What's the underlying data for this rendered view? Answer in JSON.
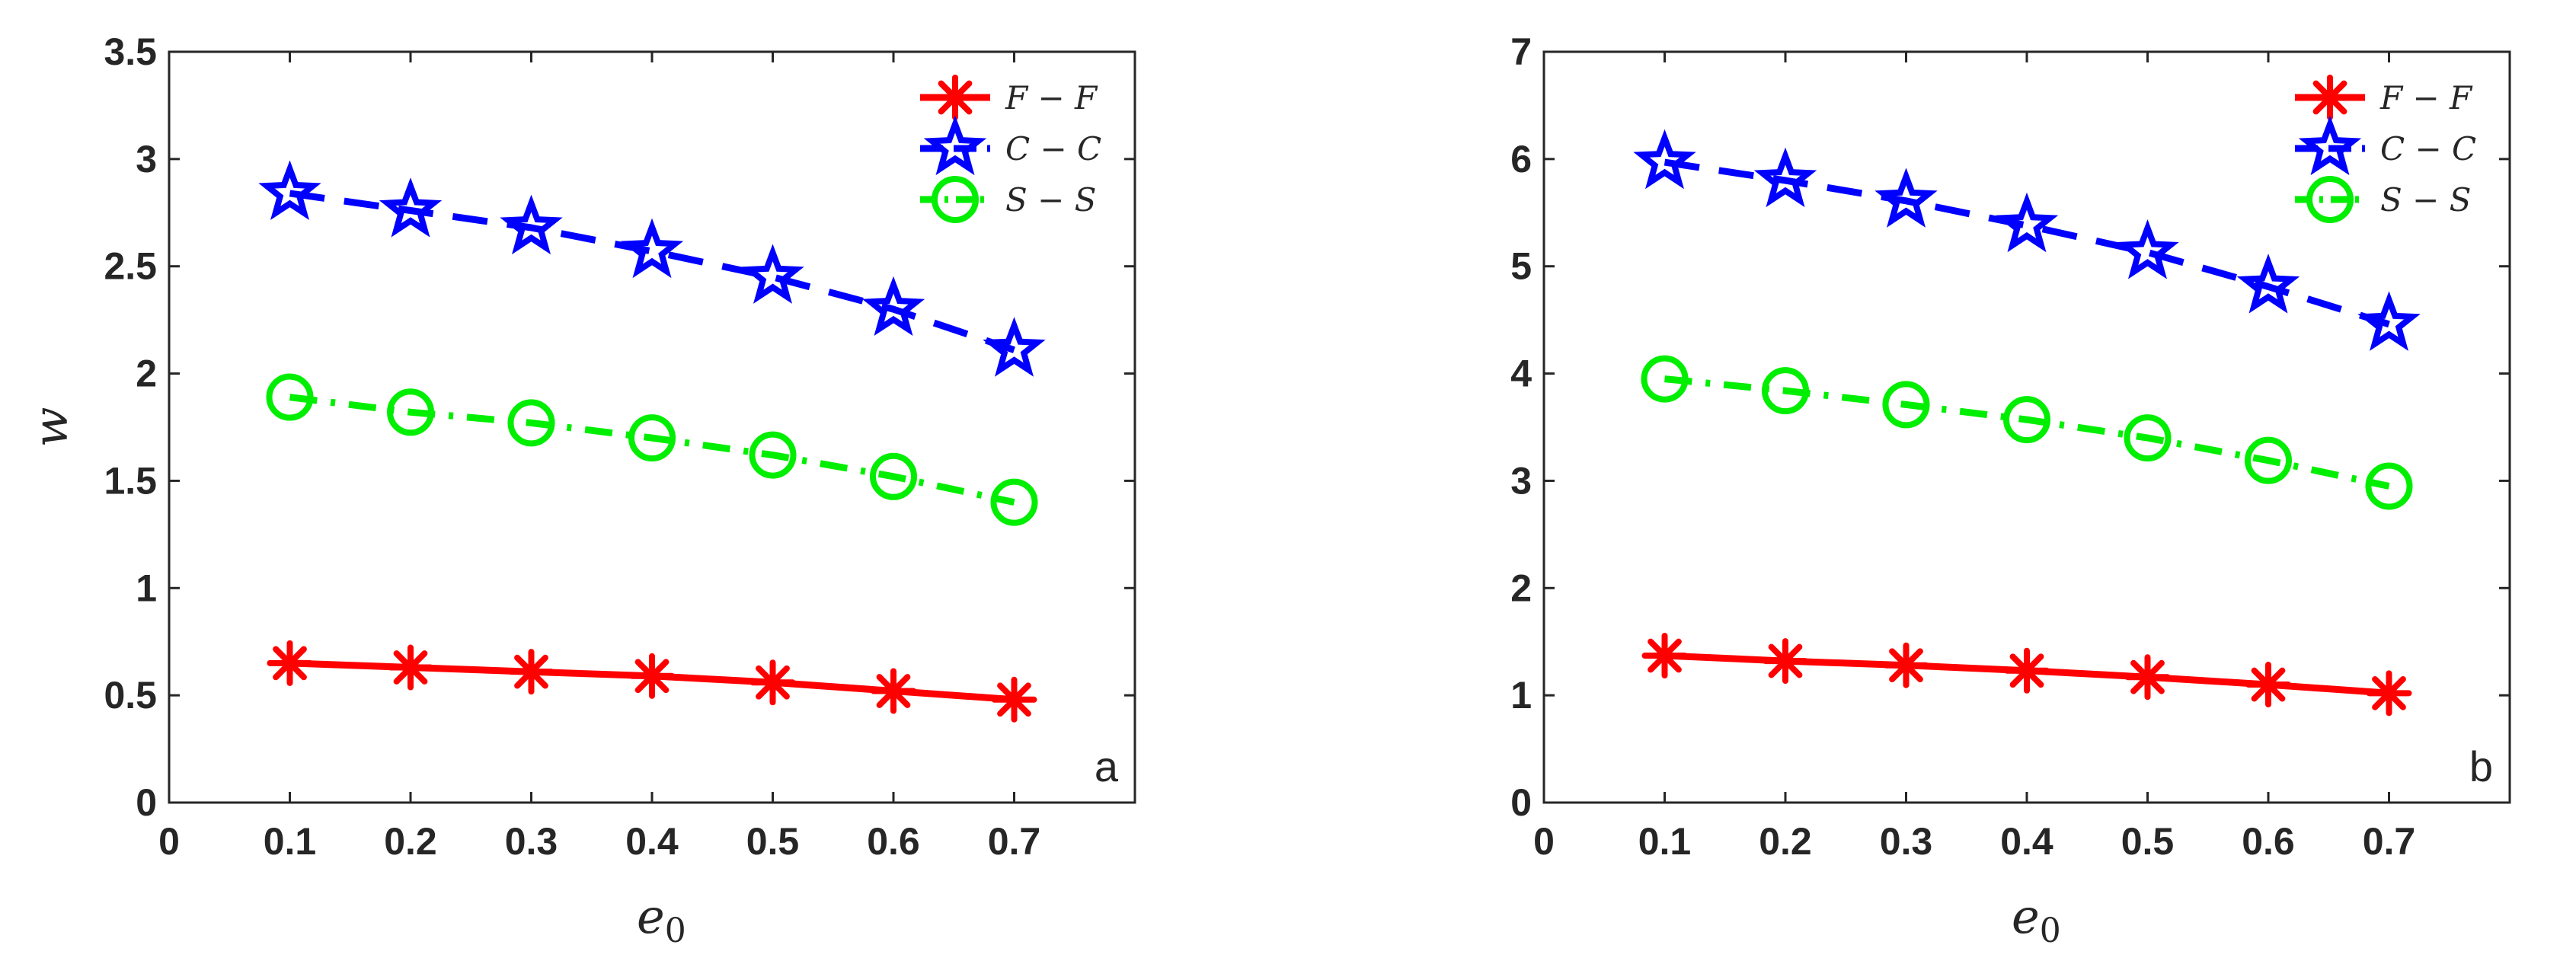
{
  "chart_data": [
    {
      "type": "line",
      "panel_label": "a",
      "xlabel": "e0",
      "ylabel": "w",
      "xlim": [
        0,
        0.8
      ],
      "ylim": [
        0,
        3.5
      ],
      "x_ticks": [
        "0",
        "0.1",
        "0.2",
        "0.3",
        "0.4",
        "0.5",
        "0.6",
        "0.7"
      ],
      "y_ticks": [
        "0",
        "0.5",
        "1",
        "1.5",
        "2",
        "2.5",
        "3",
        "3.5"
      ],
      "grid": false,
      "legend_position": "top-right",
      "x": [
        0.1,
        0.2,
        0.3,
        0.4,
        0.5,
        0.6,
        0.7
      ],
      "series": [
        {
          "name": "F − F",
          "color": "#ff0000",
          "marker": "asterisk",
          "line": "solid",
          "values": [
            0.65,
            0.63,
            0.61,
            0.59,
            0.56,
            0.52,
            0.48
          ]
        },
        {
          "name": "C − C",
          "color": "#0000ff",
          "marker": "pentagram",
          "line": "dashed",
          "values": [
            2.84,
            2.76,
            2.68,
            2.57,
            2.45,
            2.3,
            2.11
          ]
        },
        {
          "name": "S − S",
          "color": "#00ee00",
          "marker": "circle",
          "line": "dashdot",
          "values": [
            1.89,
            1.82,
            1.77,
            1.7,
            1.62,
            1.52,
            1.4
          ]
        }
      ]
    },
    {
      "type": "line",
      "panel_label": "b",
      "xlabel": "e0",
      "ylabel": "",
      "xlim": [
        0,
        0.8
      ],
      "ylim": [
        0,
        7
      ],
      "x_ticks": [
        "0",
        "0.1",
        "0.2",
        "0.3",
        "0.4",
        "0.5",
        "0.6",
        "0.7"
      ],
      "y_ticks": [
        "0",
        "1",
        "2",
        "3",
        "4",
        "5",
        "6",
        "7"
      ],
      "grid": false,
      "legend_position": "top-right",
      "x": [
        0.1,
        0.2,
        0.3,
        0.4,
        0.5,
        0.6,
        0.7
      ],
      "series": [
        {
          "name": "F − F",
          "color": "#ff0000",
          "marker": "asterisk",
          "line": "solid",
          "values": [
            1.37,
            1.32,
            1.28,
            1.23,
            1.17,
            1.1,
            1.02
          ]
        },
        {
          "name": "C − C",
          "color": "#0000ff",
          "marker": "pentagram",
          "line": "dashed",
          "values": [
            5.97,
            5.8,
            5.61,
            5.38,
            5.13,
            4.81,
            4.46
          ]
        },
        {
          "name": "S − S",
          "color": "#00ee00",
          "marker": "circle",
          "line": "dashdot",
          "values": [
            3.95,
            3.84,
            3.71,
            3.57,
            3.4,
            3.19,
            2.95
          ]
        }
      ]
    }
  ]
}
